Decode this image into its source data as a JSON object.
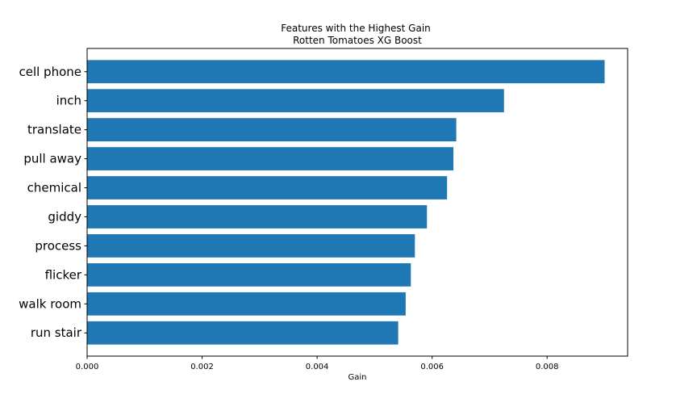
{
  "chart_data": {
    "type": "bar",
    "orientation": "horizontal",
    "title": "Features with the Highest Gain",
    "subtitle": "Rotten Tomatoes XG Boost",
    "xlabel": "Gain",
    "ylabel": "",
    "xlim": [
      0,
      0.0094
    ],
    "xticks": [
      "0.000",
      "0.002",
      "0.004",
      "0.006",
      "0.008"
    ],
    "xtick_values": [
      0,
      0.002,
      0.004,
      0.006,
      0.008
    ],
    "categories": [
      "run stair",
      "walk room",
      "flicker",
      "process",
      "giddy",
      "chemical",
      "pull away",
      "translate",
      "inch",
      "cell phone"
    ],
    "values": [
      0.00541,
      0.00554,
      0.00563,
      0.0057,
      0.00591,
      0.00626,
      0.00637,
      0.00642,
      0.00725,
      0.009
    ],
    "bar_color": "#1f77b4",
    "grid": false,
    "legend": "none"
  }
}
